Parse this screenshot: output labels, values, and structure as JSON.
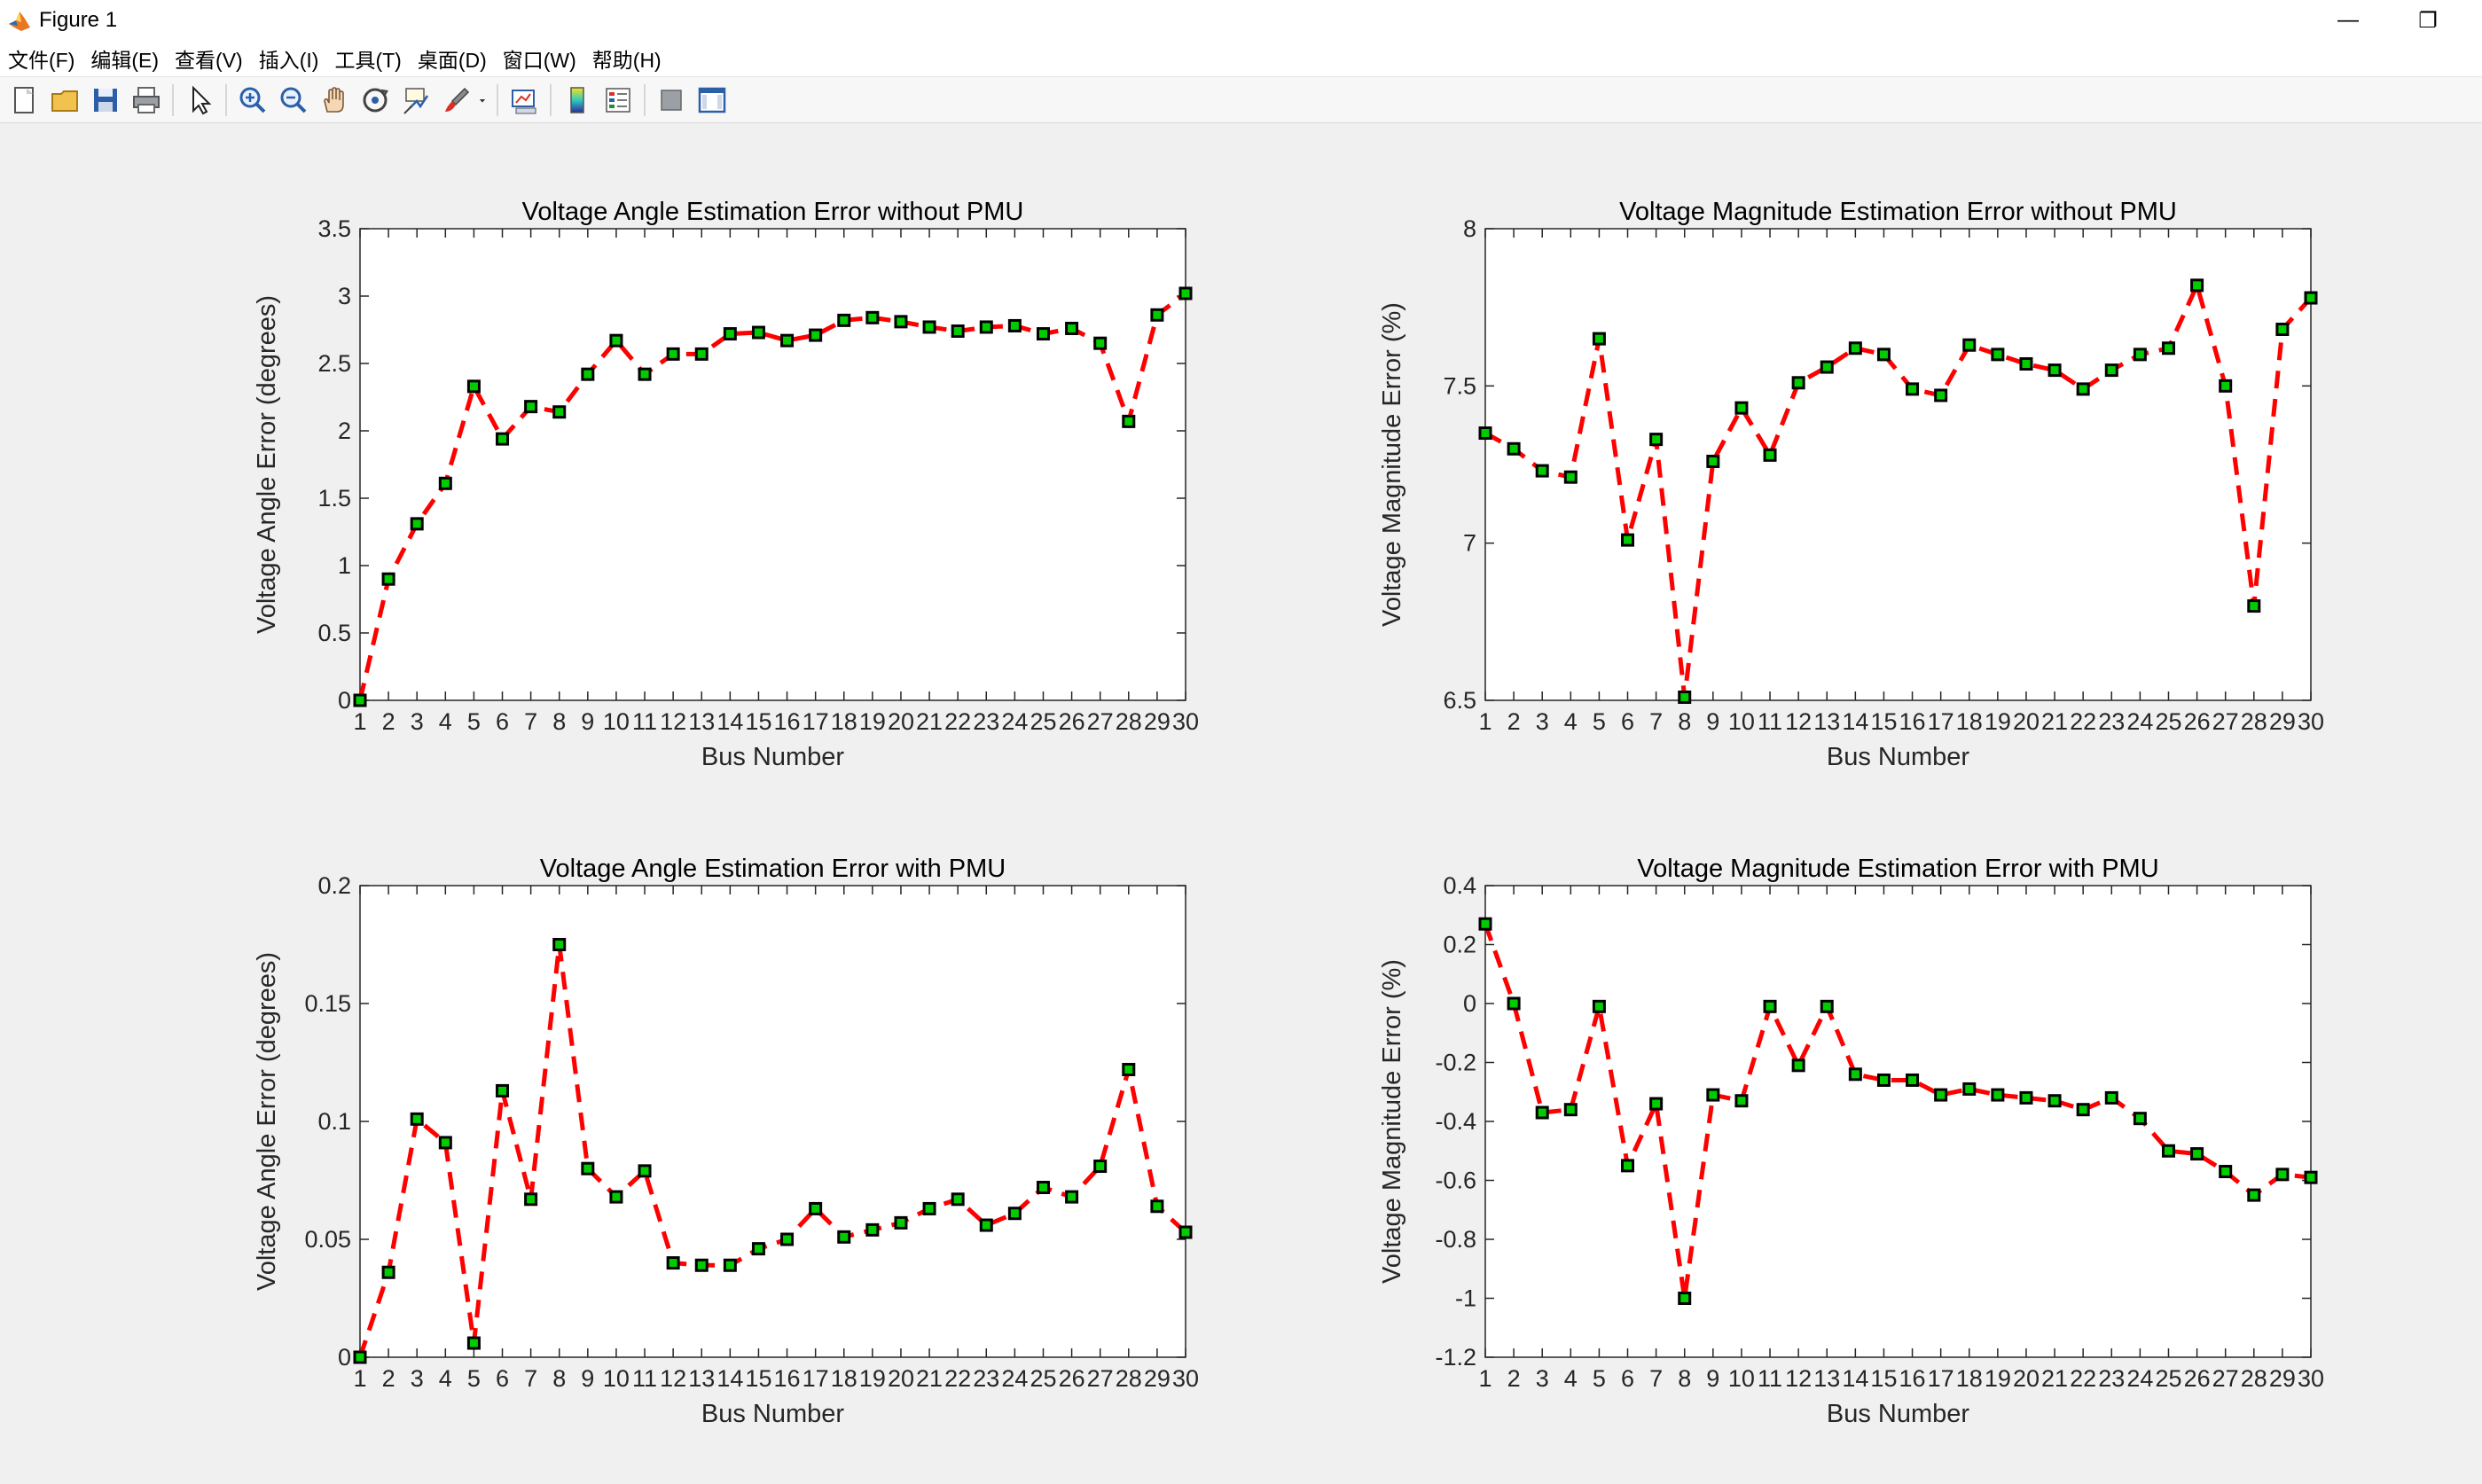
{
  "window": {
    "title": "Figure 1",
    "minimize_glyph": "—",
    "restore_glyph": "❐"
  },
  "menu": [
    "文件(F)",
    "编辑(E)",
    "查看(V)",
    "插入(I)",
    "工具(T)",
    "桌面(D)",
    "窗口(W)",
    "帮助(H)"
  ],
  "toolbar_icons": [
    "new-figure-icon",
    "open-file-icon",
    "save-icon",
    "print-icon",
    "separator",
    "pointer-icon",
    "separator",
    "zoom-in-icon",
    "zoom-out-icon",
    "pan-hand-icon",
    "rotate-3d-icon",
    "data-cursor-icon",
    "brush-icon",
    "dropdown-arrow-icon",
    "separator",
    "link-plot-icon",
    "separator",
    "colorbar-icon",
    "legend-icon",
    "separator",
    "hide-plot-tools-icon",
    "show-plot-tools-icon"
  ],
  "colors": {
    "line": "#ff0000",
    "marker_fill": "#00cc00",
    "marker_edge": "#000000",
    "axes_bg": "#ffffff",
    "figure_bg": "#f0f0f0"
  },
  "chart_data": [
    {
      "type": "line",
      "title": "Voltage Angle Estimation Error without PMU",
      "xlabel": "Bus Number",
      "ylabel": "Voltage Angle Error (degrees)",
      "xlim": [
        1,
        30
      ],
      "ylim": [
        0,
        3.5
      ],
      "yticks": [
        0,
        0.5,
        1,
        1.5,
        2,
        2.5,
        3,
        3.5
      ],
      "ytick_labels": [
        "0",
        "0.5",
        "1",
        "1.5",
        "2",
        "2.5",
        "3",
        "3.5"
      ],
      "x": [
        1,
        2,
        3,
        4,
        5,
        6,
        7,
        8,
        9,
        10,
        11,
        12,
        13,
        14,
        15,
        16,
        17,
        18,
        19,
        20,
        21,
        22,
        23,
        24,
        25,
        26,
        27,
        28,
        29,
        30
      ],
      "values": [
        0,
        0.9,
        1.31,
        1.61,
        2.33,
        1.94,
        2.18,
        2.14,
        2.42,
        2.67,
        2.42,
        2.57,
        2.57,
        2.72,
        2.73,
        2.67,
        2.71,
        2.82,
        2.84,
        2.81,
        2.77,
        2.74,
        2.77,
        2.78,
        2.72,
        2.76,
        2.65,
        2.07,
        2.86,
        3.02
      ]
    },
    {
      "type": "line",
      "title": "Voltage Magnitude Estimation Error without PMU",
      "xlabel": "Bus Number",
      "ylabel": "Voltage Magnitude Error (%)",
      "xlim": [
        1,
        30
      ],
      "ylim": [
        6.5,
        8
      ],
      "yticks": [
        6.5,
        7,
        7.5,
        8
      ],
      "ytick_labels": [
        "6.5",
        "7",
        "7.5",
        "8"
      ],
      "x": [
        1,
        2,
        3,
        4,
        5,
        6,
        7,
        8,
        9,
        10,
        11,
        12,
        13,
        14,
        15,
        16,
        17,
        18,
        19,
        20,
        21,
        22,
        23,
        24,
        25,
        26,
        27,
        28,
        29,
        30
      ],
      "values": [
        7.35,
        7.3,
        7.23,
        7.21,
        7.65,
        7.01,
        7.33,
        6.51,
        7.26,
        7.43,
        7.28,
        7.51,
        7.56,
        7.62,
        7.6,
        7.49,
        7.47,
        7.63,
        7.6,
        7.57,
        7.55,
        7.49,
        7.55,
        7.6,
        7.62,
        7.82,
        7.5,
        6.8,
        7.68,
        7.78
      ]
    },
    {
      "type": "line",
      "title": "Voltage Angle Estimation Error with PMU",
      "xlabel": "Bus Number",
      "ylabel": "Voltage Angle Error (degrees)",
      "xlim": [
        1,
        30
      ],
      "ylim": [
        0,
        0.2
      ],
      "yticks": [
        0,
        0.05,
        0.1,
        0.15,
        0.2
      ],
      "ytick_labels": [
        "0",
        "0.05",
        "0.1",
        "0.15",
        "0.2"
      ],
      "x": [
        1,
        2,
        3,
        4,
        5,
        6,
        7,
        8,
        9,
        10,
        11,
        12,
        13,
        14,
        15,
        16,
        17,
        18,
        19,
        20,
        21,
        22,
        23,
        24,
        25,
        26,
        27,
        28,
        29,
        30
      ],
      "values": [
        0,
        0.036,
        0.101,
        0.091,
        0.006,
        0.113,
        0.067,
        0.175,
        0.08,
        0.068,
        0.079,
        0.04,
        0.039,
        0.039,
        0.046,
        0.05,
        0.063,
        0.051,
        0.054,
        0.057,
        0.063,
        0.067,
        0.056,
        0.061,
        0.072,
        0.068,
        0.081,
        0.122,
        0.064,
        0.053
      ]
    },
    {
      "type": "line",
      "title": "Voltage Magnitude Estimation Error with PMU",
      "xlabel": "Bus Number",
      "ylabel": "Voltage Magnitude Error (%)",
      "xlim": [
        1,
        30
      ],
      "ylim": [
        -1.2,
        0.4
      ],
      "yticks": [
        -1.2,
        -1,
        -0.8,
        -0.6,
        -0.4,
        -0.2,
        0,
        0.2,
        0.4
      ],
      "ytick_labels": [
        "-1.2",
        "-1",
        "-0.8",
        "-0.6",
        "-0.4",
        "-0.2",
        "0",
        "0.2",
        "0.4"
      ],
      "x": [
        1,
        2,
        3,
        4,
        5,
        6,
        7,
        8,
        9,
        10,
        11,
        12,
        13,
        14,
        15,
        16,
        17,
        18,
        19,
        20,
        21,
        22,
        23,
        24,
        25,
        26,
        27,
        28,
        29,
        30
      ],
      "values": [
        0.27,
        0.0,
        -0.37,
        -0.36,
        -0.01,
        -0.55,
        -0.34,
        -1.0,
        -0.31,
        -0.33,
        -0.01,
        -0.21,
        -0.01,
        -0.24,
        -0.26,
        -0.26,
        -0.31,
        -0.29,
        -0.31,
        -0.32,
        -0.33,
        -0.36,
        -0.32,
        -0.39,
        -0.5,
        -0.51,
        -0.57,
        -0.65,
        -0.58,
        -0.59
      ]
    }
  ]
}
